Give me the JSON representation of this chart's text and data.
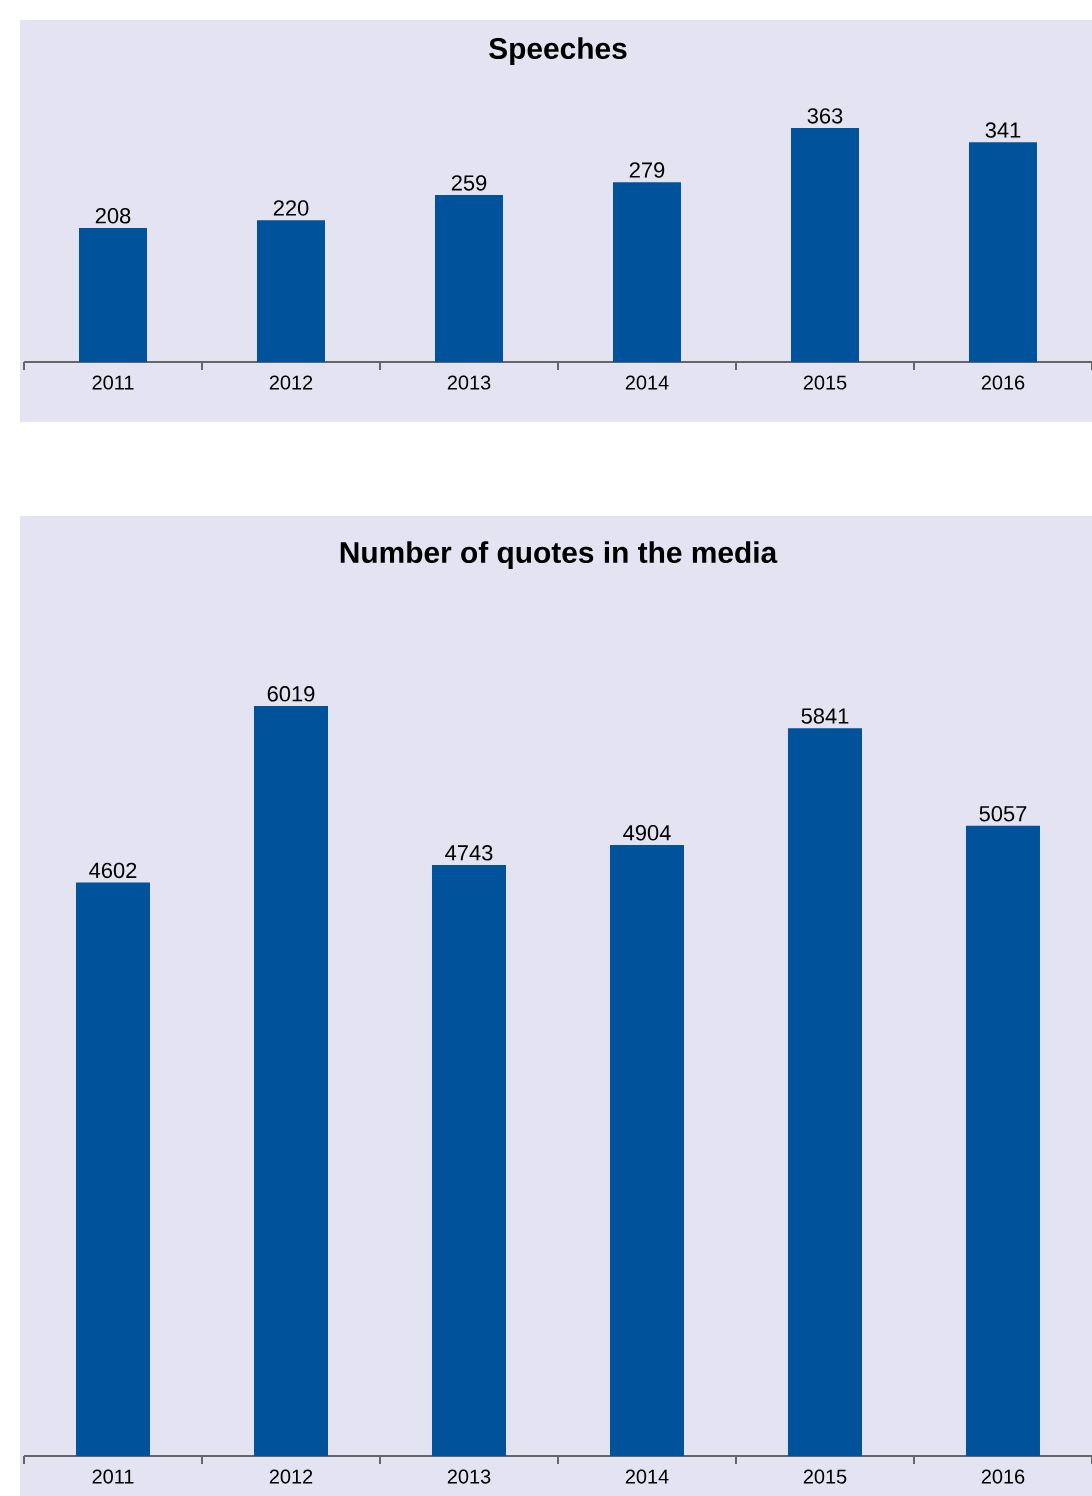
{
  "chart_data": [
    {
      "type": "bar",
      "title": "Speeches",
      "categories": [
        "2011",
        "2012",
        "2013",
        "2014",
        "2015",
        "2016"
      ],
      "values": [
        208,
        220,
        259,
        279,
        363,
        341
      ],
      "color": "#00529b",
      "data_labels": true,
      "tick_labels": "x"
    },
    {
      "type": "bar",
      "title": "Number of quotes in the media",
      "categories": [
        "2011",
        "2012",
        "2013",
        "2014",
        "2015",
        "2016"
      ],
      "values": [
        4602,
        6019,
        4743,
        4904,
        5841,
        5057
      ],
      "color": "#00529b",
      "data_labels": true,
      "tick_labels": "x"
    }
  ]
}
